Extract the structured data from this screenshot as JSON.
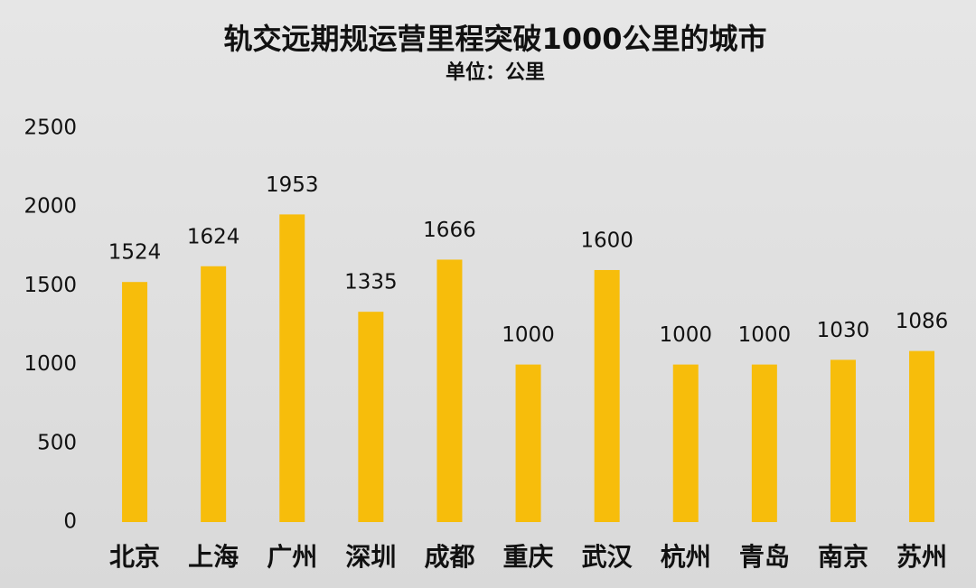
{
  "chart_data": {
    "type": "bar",
    "title": "轨交远期规运营里程突破1000公里的城市",
    "subtitle": "单位：公里",
    "categories": [
      "北京",
      "上海",
      "广州",
      "深圳",
      "成都",
      "重庆",
      "武汉",
      "杭州",
      "青岛",
      "南京",
      "苏州"
    ],
    "values": [
      1524,
      1624,
      1953,
      1335,
      1666,
      1000,
      1600,
      1000,
      1000,
      1030,
      1086
    ],
    "color": "#f7bd0b",
    "ylim": [
      0,
      2500
    ],
    "yticks": [
      0,
      500,
      1000,
      1500,
      2000,
      2500
    ],
    "grid": false
  }
}
